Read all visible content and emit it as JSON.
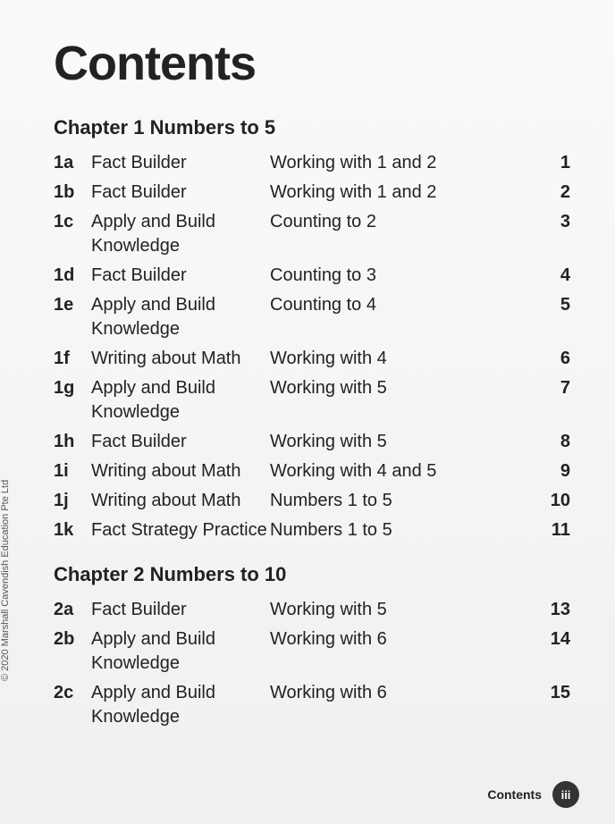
{
  "title": "Contents",
  "copyright": "© 2020 Marshall Cavendish Education Pte Ltd",
  "footer": {
    "label": "Contents",
    "page": "iii"
  },
  "chapters": [
    {
      "title": "Chapter 1  Numbers to 5",
      "rows": [
        {
          "id": "1a",
          "type": "Fact Builder",
          "topic": "Working with 1 and 2",
          "page": "1"
        },
        {
          "id": "1b",
          "type": "Fact Builder",
          "topic": "Working with 1 and 2",
          "page": "2"
        },
        {
          "id": "1c",
          "type": "Apply and Build Knowledge",
          "topic": "Counting to 2",
          "page": "3"
        },
        {
          "id": "1d",
          "type": "Fact Builder",
          "topic": "Counting to 3",
          "page": "4"
        },
        {
          "id": "1e",
          "type": "Apply and Build Knowledge",
          "topic": "Counting to 4",
          "page": "5"
        },
        {
          "id": "1f",
          "type": "Writing about Math",
          "topic": "Working with 4",
          "page": "6"
        },
        {
          "id": "1g",
          "type": "Apply and Build Knowledge",
          "topic": "Working with 5",
          "page": "7"
        },
        {
          "id": "1h",
          "type": "Fact Builder",
          "topic": "Working with 5",
          "page": "8"
        },
        {
          "id": "1i",
          "type": "Writing about Math",
          "topic": "Working with 4 and 5",
          "page": "9"
        },
        {
          "id": "1j",
          "type": "Writing about Math",
          "topic": "Numbers 1 to 5",
          "page": "10"
        },
        {
          "id": "1k",
          "type": "Fact Strategy Practice",
          "topic": "Numbers 1 to 5",
          "page": "11"
        }
      ]
    },
    {
      "title": "Chapter 2  Numbers to 10",
      "rows": [
        {
          "id": "2a",
          "type": "Fact Builder",
          "topic": "Working with 5",
          "page": "13"
        },
        {
          "id": "2b",
          "type": "Apply and Build Knowledge",
          "topic": "Working with 6",
          "page": "14"
        },
        {
          "id": "2c",
          "type": "Apply and Build Knowledge",
          "topic": "Working with 6",
          "page": "15"
        }
      ]
    }
  ]
}
